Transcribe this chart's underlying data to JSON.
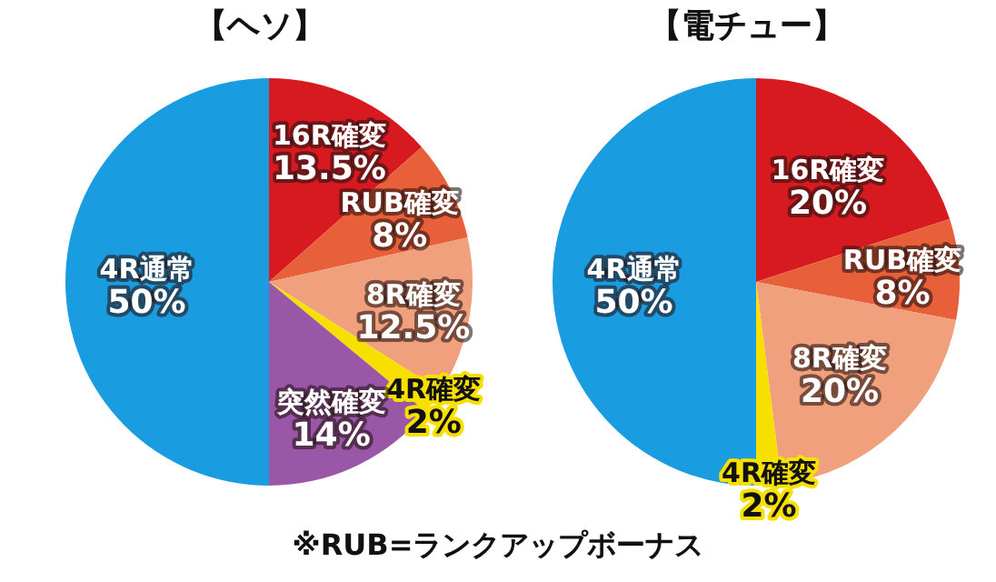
{
  "chart_data": [
    {
      "type": "pie",
      "title": "【ヘソ】",
      "categories": [
        "16R確変",
        "RUB確変",
        "8R確変",
        "4R確変",
        "突然確変",
        "4R通常"
      ],
      "values": [
        13.5,
        8,
        12.5,
        2,
        14,
        50
      ],
      "colors": [
        "#d71920",
        "#e8603a",
        "#f0a07c",
        "#f7e000",
        "#9a57a8",
        "#1a9ce0"
      ],
      "value_labels": [
        "13.5%",
        "8%",
        "12.5%",
        "2%",
        "14%",
        "50%"
      ],
      "annotations": [
        "※RUB=ランクアップボーナス"
      ]
    },
    {
      "type": "pie",
      "title": "【電チュー】",
      "categories": [
        "16R確変",
        "RUB確変",
        "8R確変",
        "4R確変",
        "4R通常"
      ],
      "values": [
        20,
        8,
        20,
        2,
        50
      ],
      "colors": [
        "#d71920",
        "#e8603a",
        "#f0a07c",
        "#f7e000",
        "#1a9ce0"
      ],
      "value_labels": [
        "20%",
        "8%",
        "20%",
        "2%",
        "50%"
      ]
    }
  ]
}
